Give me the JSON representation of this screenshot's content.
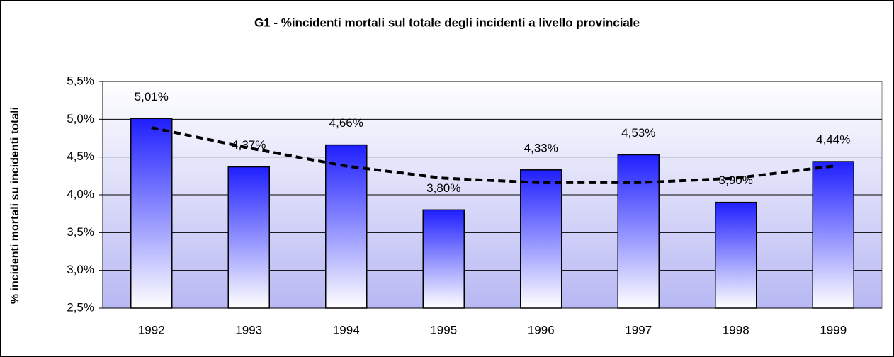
{
  "chart_data": {
    "type": "bar",
    "title": "G1 - %incidenti mortali sul totale degli incidenti a livello provinciale",
    "y_label": "% incidenti mortali su incidenti totali",
    "categories": [
      "1992",
      "1993",
      "1994",
      "1995",
      "1996",
      "1997",
      "1998",
      "1999"
    ],
    "values": [
      5.01,
      4.37,
      4.66,
      3.8,
      4.33,
      4.53,
      3.9,
      4.44
    ],
    "value_labels": [
      "5,01%",
      "4,37%",
      "4,66%",
      "3,80%",
      "4,33%",
      "4,53%",
      "3,90%",
      "4,44%"
    ],
    "color": "#1f1fff",
    "trendline": {
      "color": "#000000",
      "values": [
        4.89,
        4.62,
        4.38,
        4.22,
        4.16,
        4.16,
        4.22,
        4.38
      ]
    },
    "ylim": [
      2.5,
      5.5
    ],
    "yticks": [
      {
        "value": 2.5,
        "label": "2,5%"
      },
      {
        "value": 3.0,
        "label": "3,0%"
      },
      {
        "value": 3.5,
        "label": "3,5%"
      },
      {
        "value": 4.0,
        "label": "4,0%"
      },
      {
        "value": 4.5,
        "label": "4,5%"
      },
      {
        "value": 5.0,
        "label": "5,0%"
      },
      {
        "value": 5.5,
        "label": "5,5%"
      }
    ],
    "grid": true
  }
}
